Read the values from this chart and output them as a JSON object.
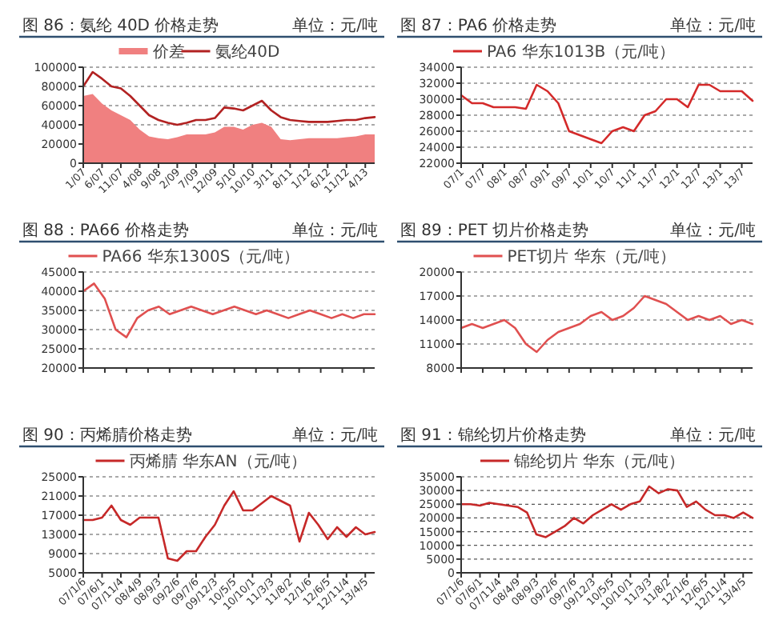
{
  "chart_data": [
    {
      "type": "line",
      "title": "图 86：氨纶 40D 价格走势",
      "subtitle": "单位：元/吨",
      "legend": "top",
      "grid": "y",
      "ylim": [
        0,
        100000
      ],
      "yticks": [
        0,
        20000,
        40000,
        60000,
        80000,
        100000
      ],
      "categories": [
        "1/07",
        null,
        "6/07",
        null,
        "11/07",
        null,
        "4/08",
        null,
        "9/08",
        null,
        "2/09",
        null,
        "7/09",
        null,
        "12/09",
        null,
        "5/10",
        null,
        "10/10",
        null,
        "3/11",
        null,
        "8/11",
        null,
        "1/12",
        null,
        "6/12",
        null,
        "11/12",
        null,
        "4/13",
        null
      ],
      "series": [
        {
          "name": "价差",
          "type": "area",
          "color": "#f08080",
          "values": [
            70000,
            72000,
            62000,
            55000,
            50000,
            45000,
            35000,
            28000,
            26000,
            25000,
            27000,
            30000,
            30000,
            30000,
            32000,
            38000,
            38000,
            35000,
            40000,
            42000,
            38000,
            25000,
            24000,
            25000,
            26000,
            26000,
            26000,
            26000,
            27000,
            28000,
            30000,
            30000
          ]
        },
        {
          "name": "氨纶40D",
          "type": "line",
          "color": "#b22222",
          "values": [
            80000,
            95000,
            88000,
            80000,
            78000,
            70000,
            60000,
            50000,
            45000,
            42000,
            40000,
            42000,
            45000,
            45000,
            47000,
            58000,
            57000,
            55000,
            60000,
            65000,
            55000,
            48000,
            45000,
            44000,
            43000,
            43000,
            43000,
            44000,
            45000,
            45000,
            47000,
            48000
          ]
        }
      ]
    },
    {
      "type": "line",
      "title": "图 87：PA6 价格走势",
      "subtitle": "单位：元/吨",
      "legend": "top",
      "grid": "y",
      "ylim": [
        22000,
        34000
      ],
      "yticks": [
        22000,
        24000,
        26000,
        28000,
        30000,
        32000,
        34000
      ],
      "categories": [
        "07/1",
        null,
        "07/7",
        null,
        "08/1",
        null,
        "08/7",
        null,
        "09/1",
        null,
        "09/7",
        null,
        "10/1",
        null,
        "10/7",
        null,
        "11/1",
        null,
        "11/7",
        null,
        "12/1",
        null,
        "12/7",
        null,
        "13/1",
        null,
        "13/7",
        null
      ],
      "series": [
        {
          "name": "PA6 华东1013B（元/吨）",
          "color": "#d42a2a",
          "values": [
            30500,
            29500,
            29500,
            29000,
            29000,
            29000,
            28800,
            31800,
            31000,
            29500,
            26000,
            25500,
            25000,
            24500,
            26000,
            26500,
            26000,
            28000,
            28500,
            30000,
            30000,
            29000,
            31800,
            31800,
            31000,
            31000,
            31000,
            29800
          ]
        }
      ]
    },
    {
      "type": "line",
      "title": "图 88：PA66 价格走势",
      "subtitle": "单位：元/吨",
      "legend": "top",
      "grid": "y",
      "ylim": [
        20000,
        45000
      ],
      "yticks": [
        20000,
        25000,
        30000,
        35000,
        40000,
        45000
      ],
      "categories": [
        null,
        null,
        null,
        null,
        null,
        null,
        null,
        null,
        null,
        null,
        null,
        null,
        null,
        null,
        null,
        null,
        null,
        null,
        null,
        null,
        null,
        null,
        null,
        null,
        null,
        null,
        null,
        null
      ],
      "series": [
        {
          "name": "PA66 华东1300S（元/吨）",
          "color": "#e05050",
          "values": [
            40000,
            42000,
            38000,
            30000,
            28000,
            33000,
            35000,
            36000,
            34000,
            35000,
            36000,
            35000,
            34000,
            35000,
            36000,
            35000,
            34000,
            35000,
            34000,
            33000,
            34000,
            35000,
            34000,
            33000,
            34000,
            33000,
            34000,
            34000
          ]
        }
      ]
    },
    {
      "type": "line",
      "title": "图 89：PET 切片价格走势",
      "subtitle": "单位：元/吨",
      "legend": "top",
      "grid": "y",
      "ylim": [
        8000,
        20000
      ],
      "yticks": [
        8000,
        11000,
        14000,
        17000,
        20000
      ],
      "categories": [
        null,
        null,
        null,
        null,
        null,
        null,
        null,
        null,
        null,
        null,
        null,
        null,
        null,
        null,
        null,
        null,
        null,
        null,
        null,
        null,
        null,
        null,
        null,
        null,
        null,
        null,
        null,
        null
      ],
      "series": [
        {
          "name": "PET切片 华东（元/吨）",
          "color": "#e05050",
          "values": [
            13000,
            13500,
            13000,
            13500,
            14000,
            13000,
            11000,
            10000,
            11500,
            12500,
            13000,
            13500,
            14500,
            15000,
            14000,
            14500,
            15500,
            17000,
            16500,
            16000,
            15000,
            14000,
            14500,
            14000,
            14500,
            13500,
            14000,
            13500
          ]
        }
      ]
    },
    {
      "type": "line",
      "title": "图 90：丙烯腈价格走势",
      "subtitle": "单位：元/吨",
      "legend": "top",
      "grid": "y",
      "ylim": [
        5000,
        25000
      ],
      "yticks": [
        5000,
        9000,
        13000,
        17000,
        21000,
        25000
      ],
      "categories": [
        "07/1/6",
        null,
        "07/6/1",
        null,
        "07/11/4",
        null,
        "08/4/9",
        null,
        "08/9/3",
        null,
        "09/2/6",
        null,
        "09/7/6",
        null,
        "09/12/3",
        null,
        "10/5/5",
        null,
        "10/10/1",
        null,
        "11/3/3",
        null,
        "11/8/2",
        null,
        "12/1/6",
        null,
        "12/6/5",
        null,
        "12/11/4",
        null,
        "13/4/5",
        null
      ],
      "series": [
        {
          "name": "丙烯腈 华东AN（元/吨）",
          "color": "#c62828",
          "values": [
            16000,
            16000,
            16500,
            19000,
            16000,
            15000,
            16500,
            16500,
            16500,
            8000,
            7500,
            9500,
            9500,
            12500,
            15000,
            19000,
            22000,
            18000,
            18000,
            19500,
            21000,
            20000,
            19000,
            11500,
            17500,
            15000,
            12000,
            14500,
            12500,
            14500,
            13000,
            13500
          ]
        }
      ]
    },
    {
      "type": "line",
      "title": "图 91：锦纶切片价格走势",
      "subtitle": "单位：元/吨",
      "legend": "top",
      "grid": "y",
      "ylim": [
        0,
        35000
      ],
      "yticks": [
        0,
        5000,
        10000,
        15000,
        20000,
        25000,
        30000,
        35000
      ],
      "categories": [
        "07/1/6",
        null,
        "07/6/1",
        null,
        "07/11/4",
        null,
        "08/4/9",
        null,
        "08/9/3",
        null,
        "09/2/6",
        null,
        "09/7/6",
        null,
        "09/12/3",
        null,
        "10/5/5",
        null,
        "10/10/1",
        null,
        "11/3/3",
        null,
        "11/8/2",
        null,
        "12/1/6",
        null,
        "12/6/5",
        null,
        "12/11/4",
        null,
        "13/4/5",
        null
      ],
      "series": [
        {
          "name": "锦纶切片 华东（元/吨）",
          "color": "#c62828",
          "values": [
            25000,
            25000,
            24500,
            25500,
            25000,
            24500,
            24000,
            22000,
            14000,
            13000,
            15000,
            17000,
            20000,
            18000,
            21000,
            23000,
            25000,
            23000,
            25000,
            26000,
            31500,
            29000,
            30500,
            30000,
            24000,
            26000,
            23000,
            21000,
            21000,
            20000,
            22000,
            20000
          ]
        }
      ]
    }
  ]
}
